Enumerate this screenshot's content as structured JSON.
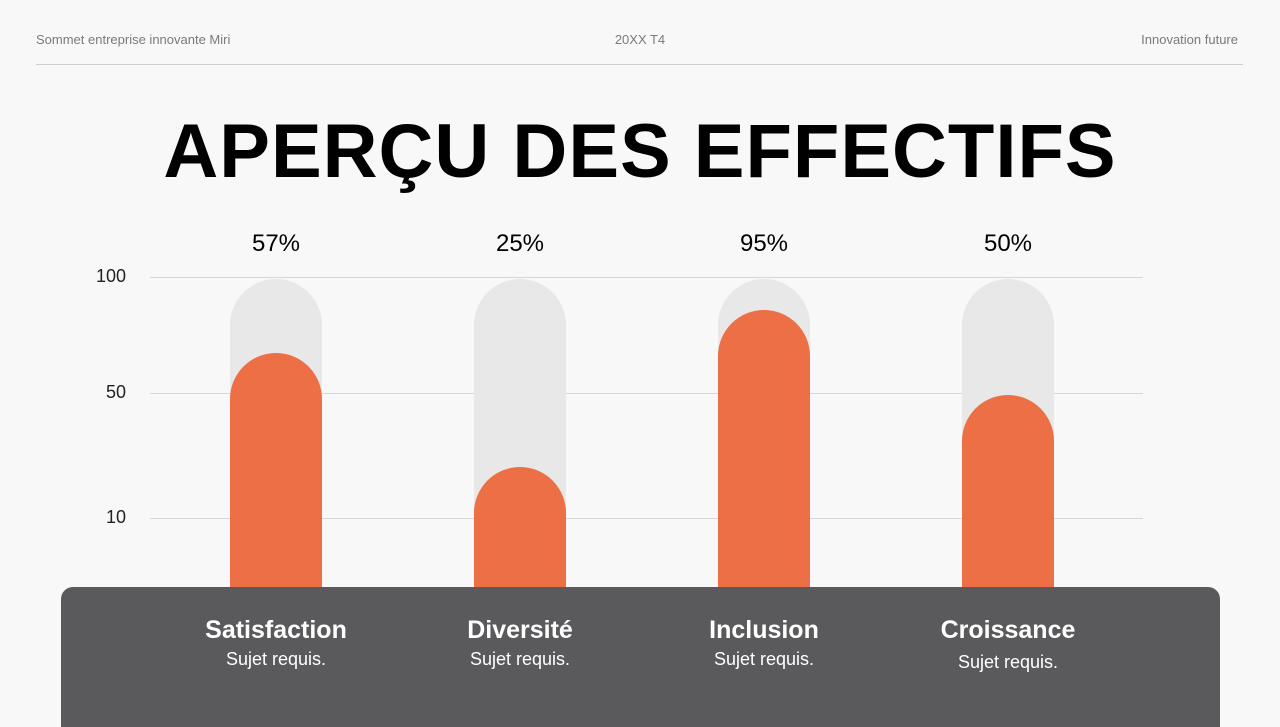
{
  "header": {
    "left": "Sommet entreprise innovante Miri",
    "center": "20XX T4",
    "right": "Innovation future"
  },
  "title": "APERÇU DES EFFECTIFS",
  "colors": {
    "fill": "#ec6f45",
    "track": "#e8e8e8",
    "panel": "#5a595b"
  },
  "chart_data": {
    "type": "bar",
    "title": "APERÇU DES EFFECTIFS",
    "categories": [
      "Satisfaction",
      "Diversité",
      "Inclusion",
      "Croissance"
    ],
    "subtitles": [
      "Sujet requis.",
      "Sujet requis.",
      "Sujet requis.",
      "Sujet requis."
    ],
    "values": [
      57,
      25,
      95,
      50
    ],
    "value_labels": [
      "57%",
      "25%",
      "95%",
      "50%"
    ],
    "y_ticks": [
      "100",
      "50",
      "10"
    ],
    "ylim": [
      0,
      100
    ],
    "grid": true
  }
}
